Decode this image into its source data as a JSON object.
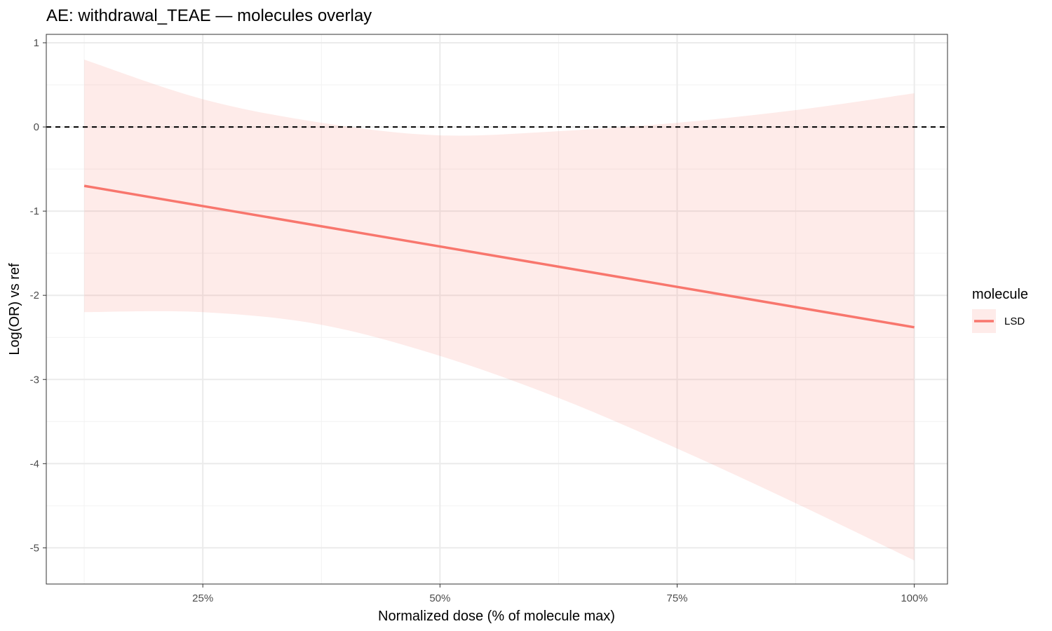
{
  "chart_data": {
    "type": "line",
    "title": "AE: withdrawal_TEAE — molecules overlay",
    "xlabel": "Normalized dose (% of molecule max)",
    "ylabel": "Log(OR) vs ref",
    "xlim": [
      0.085,
      1.035
    ],
    "ylim": [
      -5.43,
      1.1
    ],
    "x_ticks": [
      {
        "value": 0.25,
        "label": "25%"
      },
      {
        "value": 0.5,
        "label": "50%"
      },
      {
        "value": 0.75,
        "label": "75%"
      },
      {
        "value": 1.0,
        "label": "100%"
      }
    ],
    "y_ticks": [
      {
        "value": 1,
        "label": "1"
      },
      {
        "value": 0,
        "label": "0"
      },
      {
        "value": -1,
        "label": "-1"
      },
      {
        "value": -2,
        "label": "-2"
      },
      {
        "value": -3,
        "label": "-3"
      },
      {
        "value": -4,
        "label": "-4"
      },
      {
        "value": -5,
        "label": "-5"
      }
    ],
    "grid": true,
    "reference_line": {
      "y": 0,
      "style": "dashed",
      "color": "#000000"
    },
    "legend": {
      "title": "molecule",
      "placement": "right"
    },
    "series": [
      {
        "name": "LSD",
        "color": "#F8766D",
        "x": [
          0.125,
          0.25,
          0.375,
          0.5,
          0.625,
          0.75,
          0.875,
          1.0
        ],
        "y": [
          -0.7,
          -0.94,
          -1.18,
          -1.42,
          -1.66,
          -1.9,
          -2.14,
          -2.38
        ],
        "ci_lower": [
          -2.2,
          -2.2,
          -2.35,
          -2.72,
          -3.22,
          -3.82,
          -4.47,
          -5.15
        ],
        "ci_upper": [
          0.8,
          0.33,
          0.05,
          -0.1,
          -0.05,
          0.05,
          0.2,
          0.4
        ]
      }
    ]
  }
}
